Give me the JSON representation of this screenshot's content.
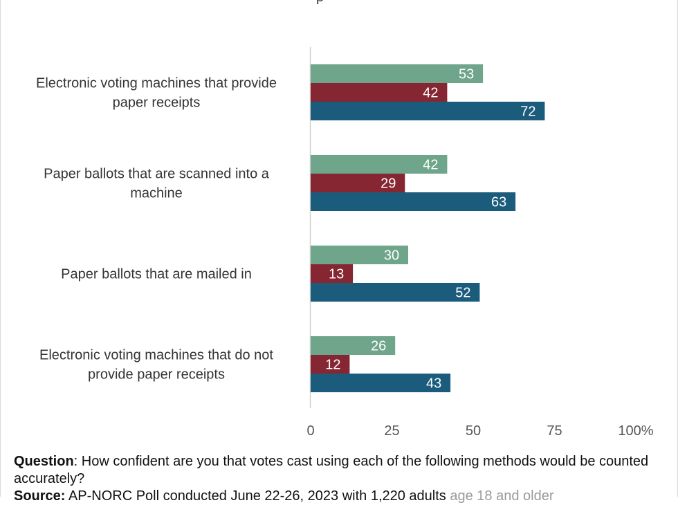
{
  "chart_data": {
    "type": "bar",
    "orientation": "horizontal",
    "categories": [
      [
        "Electronic voting machines that provide",
        "paper receipts"
      ],
      [
        "Paper ballots that are scanned into a",
        "machine"
      ],
      [
        "Paper ballots that are mailed in"
      ],
      [
        "Electronic voting machines that do not",
        "provide paper receipts"
      ]
    ],
    "series": [
      {
        "color": "#6fa58a",
        "values": [
          53,
          42,
          30,
          26
        ]
      },
      {
        "color": "#862633",
        "values": [
          42,
          29,
          13,
          12
        ]
      },
      {
        "color": "#1b5c7d",
        "values": [
          72,
          63,
          52,
          43
        ]
      }
    ],
    "xlim": [
      0,
      100
    ],
    "xticks": [
      "0",
      "25",
      "50",
      "75",
      "100%"
    ],
    "grid": false
  },
  "footer": {
    "question_label": "Question",
    "question_text": ": How confident are you that votes cast using each of the following methods would be counted accurately?",
    "source_label": "Source:",
    "source_text": " AP-NORC Poll conducted June 22-26, 2023 with 1,220 adults ",
    "source_tail": "age 18 and older"
  }
}
